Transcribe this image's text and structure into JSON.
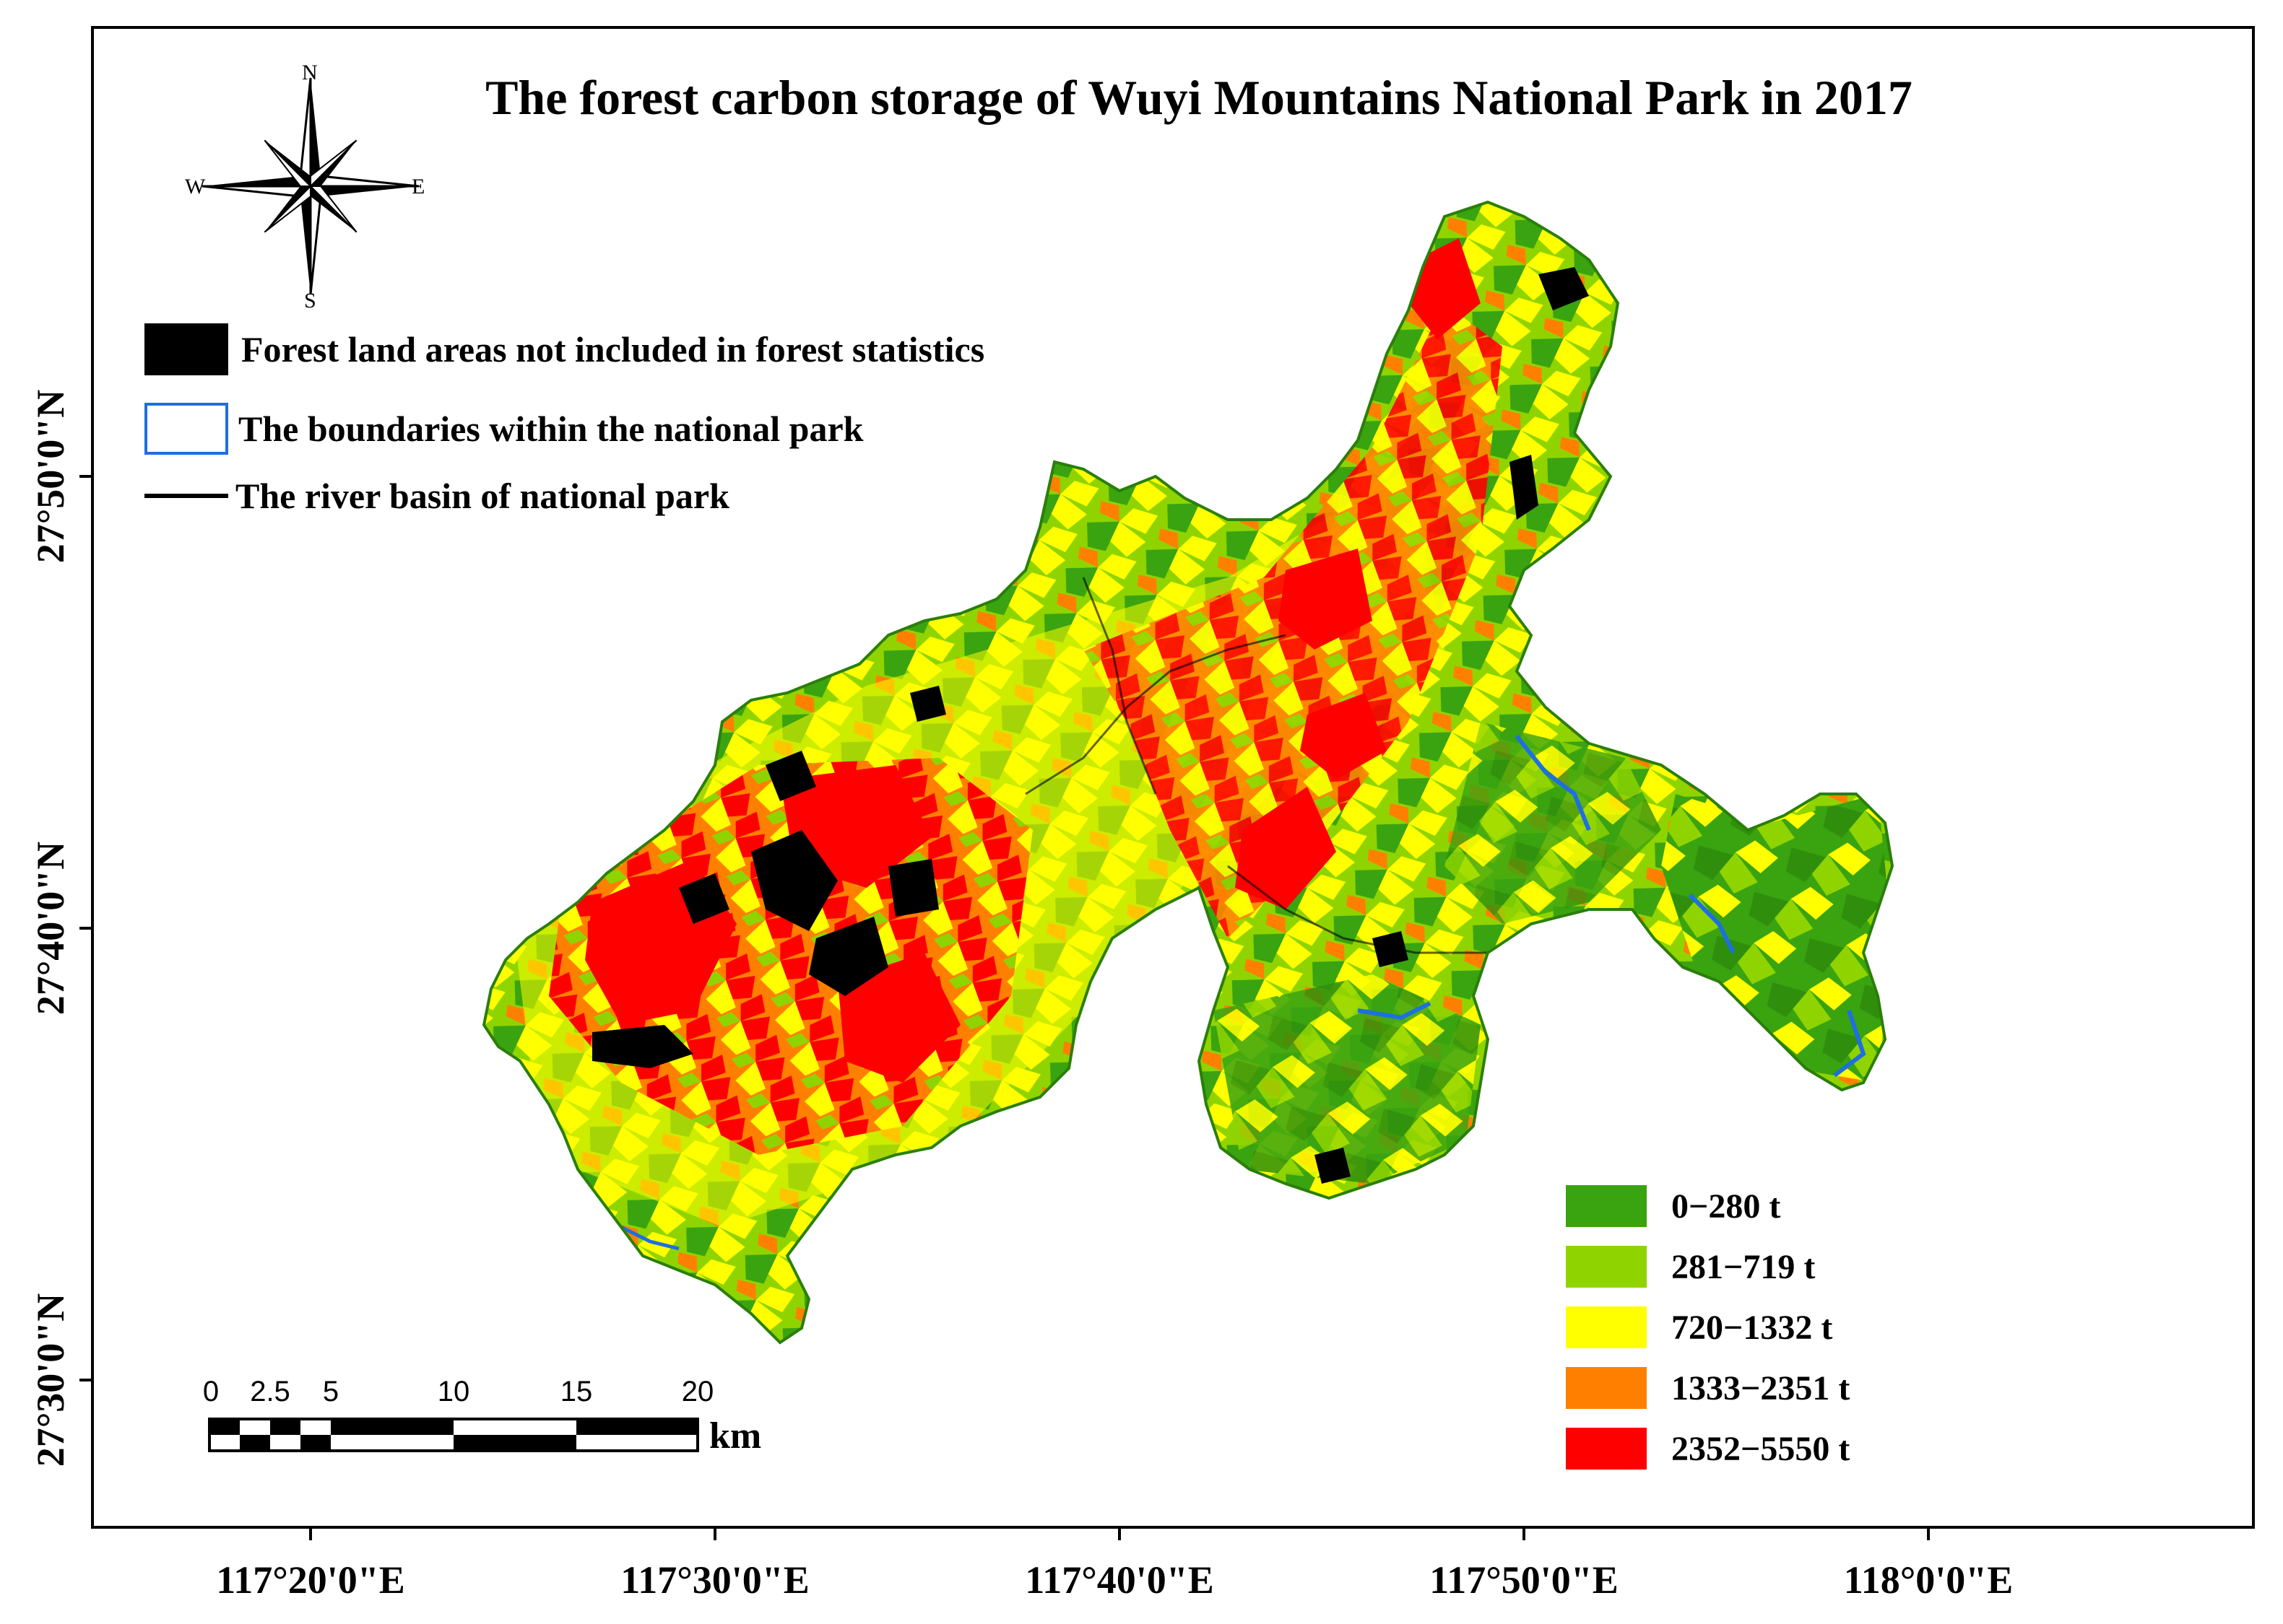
{
  "title": "The forest carbon storage of Wuyi Mountains National Park in 2017",
  "legend": {
    "items": [
      {
        "label": "Forest land areas not included in forest statistics",
        "symbol": "black-fill"
      },
      {
        "label": "The boundaries within the national park",
        "symbol": "blue-outline"
      },
      {
        "label": "The river basin of national park",
        "symbol": "black-line"
      }
    ]
  },
  "carbon_classes": [
    {
      "label": "0−280 t",
      "color": "#3aa310"
    },
    {
      "label": "281−719 t",
      "color": "#8fd400"
    },
    {
      "label": "720−1332 t",
      "color": "#ffff00"
    },
    {
      "label": "1333−2351 t",
      "color": "#ff8000"
    },
    {
      "label": "2352−5550 t",
      "color": "#ff0000"
    }
  ],
  "compass": {
    "n": "N",
    "s": "S",
    "e": "E",
    "w": "W"
  },
  "scale_bar": {
    "ticks": [
      "0",
      "2.5",
      "5",
      "10",
      "15",
      "20"
    ],
    "unit": "km"
  },
  "longitude_labels": [
    "117°20'0\"E",
    "117°30'0\"E",
    "117°40'0\"E",
    "117°50'0\"E",
    "118°0'0\"E"
  ],
  "latitude_labels": [
    "27°50'0\"N",
    "27°40'0\"N",
    "27°30'0\"N"
  ],
  "colors": {
    "boundary": "#1e6fe0",
    "river": "#000000",
    "excluded": "#000000"
  }
}
